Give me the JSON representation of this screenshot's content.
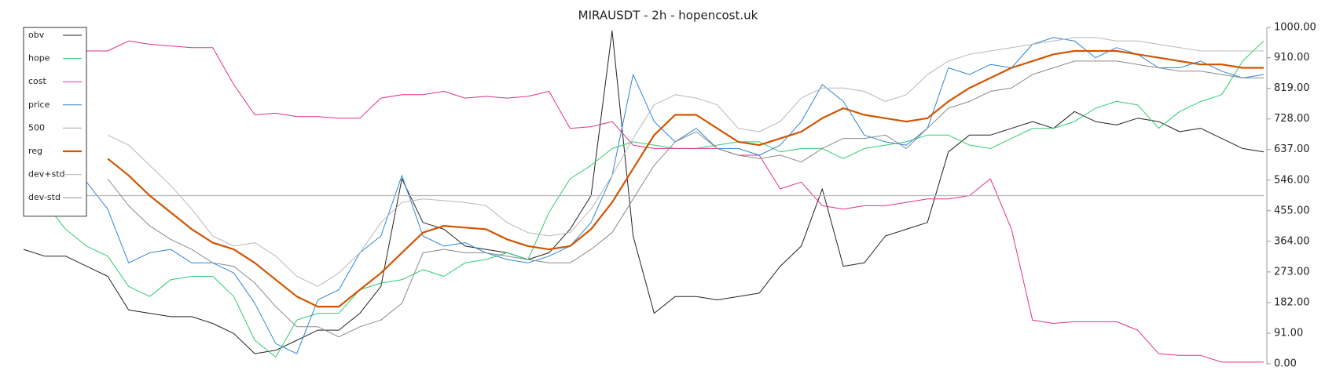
{
  "chart_data": {
    "type": "line",
    "title": "MIRAUSDT - 2h - hopencost.uk",
    "categories": [
      null,
      null,
      null,
      null,
      null,
      null,
      null,
      null,
      null,
      null,
      null,
      null,
      null,
      null,
      null,
      null,
      null,
      null,
      null,
      null,
      null,
      null,
      null,
      null,
      null,
      null,
      null,
      null,
      null,
      null,
      null,
      null,
      null,
      null,
      null,
      null,
      null,
      null,
      null,
      null,
      null,
      null,
      null,
      null,
      null,
      null,
      null,
      null,
      null,
      null,
      null,
      null,
      null,
      null,
      null,
      null,
      null,
      null,
      null,
      null
    ],
    "ylim": [
      0,
      1000
    ],
    "yticks": [
      {
        "value": 0,
        "label": "0.00"
      },
      {
        "value": 91,
        "label": "91.00"
      },
      {
        "value": 182,
        "label": "182.00"
      },
      {
        "value": 273,
        "label": "273.00"
      },
      {
        "value": 364,
        "label": "364.00"
      },
      {
        "value": 455,
        "label": "455.00"
      },
      {
        "value": 546,
        "label": "546.00"
      },
      {
        "value": 637,
        "label": "637.00"
      },
      {
        "value": 728,
        "label": "728.00"
      },
      {
        "value": 819,
        "label": "819.00"
      },
      {
        "value": 910,
        "label": "910.00"
      },
      {
        "value": 1000,
        "label": "1000.00"
      }
    ],
    "y_axis_side": "right",
    "legend": "upper left",
    "series": [
      {
        "name": "obv",
        "color": "#222222",
        "line_width": 1,
        "values": [
          340,
          320,
          320,
          290,
          260,
          160,
          150,
          140,
          140,
          120,
          90,
          30,
          40,
          70,
          100,
          100,
          150,
          230,
          550,
          420,
          400,
          350,
          340,
          330,
          310,
          330,
          400,
          500,
          990,
          380,
          150,
          200,
          200,
          190,
          200,
          210,
          290,
          350,
          520,
          290,
          300,
          380,
          400,
          420,
          630,
          680,
          680,
          700,
          720,
          700,
          750,
          720,
          710,
          730,
          720,
          690,
          700,
          670,
          640,
          630
        ]
      },
      {
        "name": "hope",
        "color": "#2ecc71",
        "line_width": 1,
        "values": [
          440,
          480,
          400,
          350,
          320,
          230,
          200,
          250,
          260,
          260,
          200,
          70,
          20,
          130,
          150,
          150,
          220,
          240,
          250,
          280,
          260,
          300,
          310,
          330,
          310,
          450,
          550,
          590,
          640,
          660,
          650,
          640,
          640,
          650,
          660,
          660,
          630,
          640,
          640,
          610,
          640,
          650,
          660,
          680,
          680,
          650,
          640,
          670,
          700,
          700,
          720,
          760,
          780,
          770,
          700,
          750,
          780,
          800,
          900,
          960
        ]
      },
      {
        "name": "cost",
        "color": "#e0308a",
        "line_width": 1,
        "values": [
          930,
          930,
          930,
          930,
          930,
          960,
          950,
          945,
          940,
          940,
          830,
          740,
          745,
          735,
          735,
          730,
          730,
          790,
          800,
          800,
          810,
          790,
          795,
          790,
          795,
          810,
          700,
          705,
          720,
          650,
          640,
          640,
          640,
          640,
          620,
          620,
          520,
          540,
          470,
          460,
          470,
          470,
          480,
          490,
          490,
          500,
          550,
          400,
          130,
          120,
          125,
          125,
          125,
          100,
          30,
          25,
          25,
          5,
          5,
          5
        ]
      },
      {
        "name": "price",
        "color": "#2f86d6",
        "line_width": 1,
        "values": [
          540,
          520,
          480,
          540,
          460,
          300,
          330,
          340,
          300,
          300,
          270,
          180,
          60,
          30,
          190,
          220,
          330,
          380,
          560,
          380,
          350,
          360,
          330,
          310,
          300,
          320,
          350,
          420,
          560,
          860,
          720,
          660,
          700,
          640,
          640,
          620,
          650,
          720,
          830,
          780,
          680,
          660,
          650,
          700,
          880,
          860,
          890,
          880,
          950,
          970,
          960,
          910,
          940,
          920,
          880,
          880,
          900,
          870,
          850,
          860
        ]
      },
      {
        "name": "500",
        "color": "#b5b5b5",
        "line_width": 1.2,
        "values": [
          500,
          500,
          500,
          500,
          500,
          500,
          500,
          500,
          500,
          500,
          500,
          500,
          500,
          500,
          500,
          500,
          500,
          500,
          500,
          500,
          500,
          500,
          500,
          500,
          500,
          500,
          500,
          500,
          500,
          500,
          500,
          500,
          500,
          500,
          500,
          500,
          500,
          500,
          500,
          500,
          500,
          500,
          500,
          500,
          500,
          500,
          500,
          500,
          500,
          500,
          500,
          500,
          500,
          500,
          500,
          500,
          500,
          500,
          500,
          500
        ]
      },
      {
        "name": "reg",
        "color": "#d35400",
        "line_width": 2.2,
        "values": [
          null,
          null,
          null,
          null,
          610,
          560,
          500,
          450,
          400,
          360,
          340,
          300,
          250,
          200,
          170,
          170,
          220,
          270,
          330,
          390,
          410,
          405,
          400,
          370,
          350,
          340,
          350,
          400,
          480,
          580,
          680,
          740,
          740,
          700,
          660,
          650,
          670,
          690,
          730,
          760,
          740,
          730,
          720,
          730,
          780,
          820,
          850,
          880,
          900,
          920,
          930,
          930,
          930,
          920,
          910,
          900,
          890,
          890,
          880,
          880
        ]
      },
      {
        "name": "dev+std",
        "color": "#b8b8b8",
        "line_width": 1,
        "values": [
          null,
          null,
          null,
          null,
          680,
          650,
          590,
          530,
          460,
          380,
          350,
          360,
          320,
          260,
          230,
          270,
          330,
          420,
          480,
          490,
          485,
          480,
          470,
          420,
          390,
          380,
          390,
          460,
          560,
          670,
          770,
          800,
          790,
          770,
          700,
          690,
          720,
          790,
          820,
          820,
          810,
          780,
          800,
          860,
          900,
          920,
          930,
          940,
          950,
          960,
          970,
          970,
          960,
          960,
          950,
          940,
          930,
          930,
          930,
          930
        ]
      },
      {
        "name": "dev-std",
        "color": "#8a8a8a",
        "line_width": 1,
        "values": [
          null,
          null,
          null,
          null,
          550,
          470,
          410,
          370,
          340,
          300,
          290,
          240,
          170,
          110,
          110,
          80,
          110,
          130,
          180,
          330,
          340,
          330,
          330,
          320,
          310,
          300,
          300,
          340,
          390,
          490,
          590,
          660,
          690,
          640,
          620,
          610,
          620,
          600,
          640,
          670,
          670,
          680,
          640,
          700,
          760,
          780,
          810,
          820,
          860,
          880,
          900,
          900,
          900,
          890,
          880,
          870,
          870,
          860,
          850,
          850
        ]
      }
    ]
  }
}
